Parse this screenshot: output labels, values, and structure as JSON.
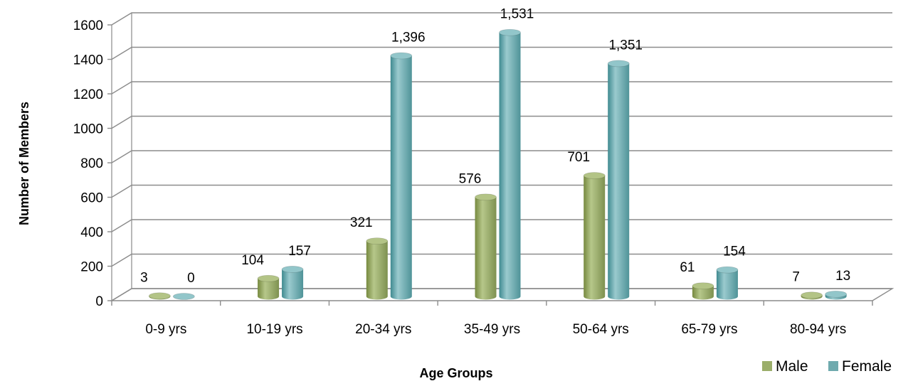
{
  "chart_data": {
    "type": "bar",
    "title": "",
    "xlabel": "Age Groups",
    "ylabel": "Number of Members",
    "categories": [
      "0-9 yrs",
      "10-19 yrs",
      "20-34 yrs",
      "35-49 yrs",
      "50-64 yrs",
      "65-79 yrs",
      "80-94 yrs"
    ],
    "series": [
      {
        "name": "Male",
        "values": [
          3,
          104,
          321,
          576,
          701,
          61,
          7
        ],
        "labels": [
          "3",
          "104",
          "321",
          "576",
          "701",
          "61",
          "7"
        ],
        "color": "#9BAE6A"
      },
      {
        "name": "Female",
        "values": [
          0,
          157,
          1396,
          1531,
          1351,
          154,
          13
        ],
        "labels": [
          "0",
          "157",
          "1,396",
          "1,531",
          "1,351",
          "154",
          "13"
        ],
        "color": "#6FAAAE"
      }
    ],
    "ylim": [
      0,
      1600
    ],
    "yticks": [
      "0",
      "200",
      "400",
      "600",
      "800",
      "1000",
      "1200",
      "1400",
      "1600"
    ],
    "grid": true,
    "legend": "bottom-right",
    "style": "3d-cylinder"
  }
}
